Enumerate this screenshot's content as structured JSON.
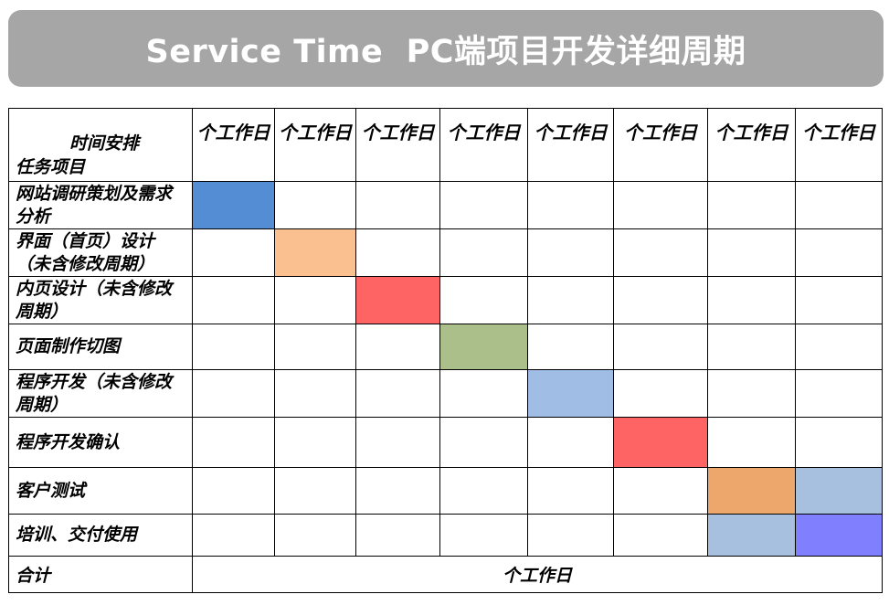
{
  "header": {
    "title": "Service Time  PC端项目开发详细周期"
  },
  "table": {
    "corner_top": "时间安排",
    "corner_bottom": "任务项目",
    "day_headers": [
      "个工作日",
      "个工作日",
      "个工作日",
      "个工作日",
      "个工作日",
      "个工作日",
      "个工作日",
      "个工作日"
    ],
    "tasks": [
      {
        "label": "网站调研策划及需求分析",
        "filled": [
          0
        ],
        "colors": [
          "#548dd4"
        ]
      },
      {
        "label": "界面（首页）设计（未含修改周期）",
        "filled": [
          1
        ],
        "colors": [
          "#fac090"
        ]
      },
      {
        "label": "内页设计（未含修改周期）",
        "filled": [
          2
        ],
        "colors": [
          "#ff6464"
        ]
      },
      {
        "label": "页面制作切图",
        "filled": [
          3
        ],
        "colors": [
          "#aabf8a"
        ]
      },
      {
        "label": "程序开发（未含修改周期）",
        "filled": [
          4
        ],
        "colors": [
          "#a0bde6"
        ]
      },
      {
        "label": "程序开发确认",
        "filled": [
          5
        ],
        "colors": [
          "#ff6464"
        ]
      },
      {
        "label": "客户测试",
        "filled": [
          6,
          7
        ],
        "colors": [
          "#eda76c",
          "#a8c0e0"
        ]
      },
      {
        "label": "培训、交付使用",
        "filled": [
          6,
          7
        ],
        "colors": [
          "#a8c0e0",
          "#8080ff"
        ]
      }
    ],
    "total_label": "合计",
    "total_value": "个工作日"
  }
}
